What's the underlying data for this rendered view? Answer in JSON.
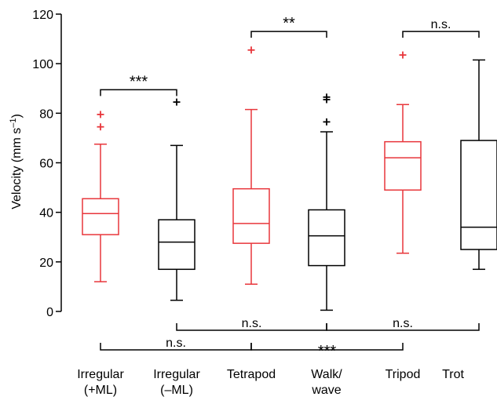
{
  "chart_data": {
    "type": "boxplot",
    "ylabel": "Velocity (mm s",
    "ylabel_sup": "–1",
    "ylabel_end": ")",
    "ylim": [
      0,
      120
    ],
    "yticks": [
      0,
      20,
      40,
      60,
      80,
      100,
      120
    ],
    "categories": [
      {
        "line1": "Irregular",
        "line2": "(+ML)"
      },
      {
        "line1": "Irregular",
        "line2": "(–ML)"
      },
      {
        "line1": "Tetrapod",
        "line2": ""
      },
      {
        "line1": "Walk/",
        "line2": "wave"
      },
      {
        "line1": "Tripod",
        "line2": ""
      },
      {
        "line1": "Trot",
        "line2": ""
      }
    ],
    "boxes": [
      {
        "whisker_low": 12,
        "q1": 31,
        "median": 39.5,
        "q3": 45.5,
        "whisker_high": 67.5,
        "outliers": [
          74.5,
          79.5
        ],
        "color": "#e8363b"
      },
      {
        "whisker_low": 4.5,
        "q1": 17,
        "median": 28,
        "q3": 37,
        "whisker_high": 67,
        "outliers": [
          84.5
        ],
        "color": "#000000"
      },
      {
        "whisker_low": 11,
        "q1": 27.5,
        "median": 35.5,
        "q3": 49.5,
        "whisker_high": 81.5,
        "outliers": [
          105.5
        ],
        "color": "#e8363b"
      },
      {
        "whisker_low": 0.5,
        "q1": 18.5,
        "median": 30.5,
        "q3": 41,
        "whisker_high": 72.5,
        "outliers": [
          76.5,
          85.5,
          86.5
        ],
        "color": "#000000"
      },
      {
        "whisker_low": 23.5,
        "q1": 49,
        "median": 62,
        "q3": 68.5,
        "whisker_high": 83.5,
        "outliers": [
          103.5
        ],
        "color": "#e8363b"
      },
      {
        "whisker_low": 17,
        "q1": 25,
        "median": 34,
        "q3": 69,
        "whisker_high": 101.5,
        "outliers": [],
        "color": "#000000"
      }
    ],
    "significance_top": [
      {
        "from": 0,
        "to": 1,
        "label": "***",
        "y": 89.5
      },
      {
        "from": 2,
        "to": 3,
        "label": "**",
        "y": 113
      },
      {
        "from": 4,
        "to": 5,
        "label": "n.s.",
        "y": 113
      }
    ],
    "significance_bottom": [
      {
        "from": 1,
        "to": 3,
        "label": "n.s.",
        "row": 1
      },
      {
        "from": 3,
        "to": 5,
        "label": "n.s.",
        "row": 1
      },
      {
        "from": 0,
        "to": 2,
        "label": "n.s.",
        "row": 2
      },
      {
        "from": 2,
        "to": 4,
        "label": "***",
        "row": 2
      }
    ]
  }
}
